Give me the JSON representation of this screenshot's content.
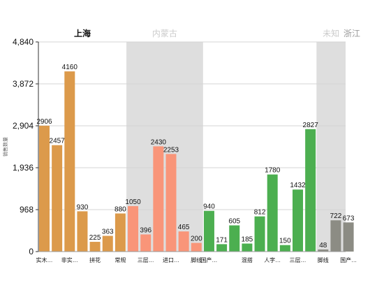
{
  "chart_data": {
    "type": "bar",
    "ylabel": "销售数量",
    "ylim": [
      0,
      4840
    ],
    "yticks": [
      0,
      968,
      1936,
      2904,
      3872,
      4840
    ],
    "ytick_labels": [
      "0",
      "968",
      "1,936",
      "2,904",
      "3,872",
      "4,840"
    ],
    "grid": true,
    "groups": [
      {
        "name": "上海",
        "color": "#DC9A4B",
        "highlighted": true,
        "shaded": false,
        "values": [
          2906,
          2457,
          4160,
          930,
          225,
          363,
          880
        ],
        "tick_labels": [
          "实木…",
          "",
          "非实…",
          "",
          "拼花",
          "",
          "常规"
        ]
      },
      {
        "name": "内蒙古",
        "color": "#F99579",
        "highlighted": false,
        "shaded": true,
        "values": [
          1050,
          396,
          2430,
          2253,
          465,
          200
        ],
        "tick_labels": [
          "",
          "三层…",
          "",
          "进口…",
          "",
          "脚线"
        ]
      },
      {
        "name": "",
        "color": "#4CAF50",
        "highlighted": false,
        "shaded": false,
        "values": [
          940,
          171,
          605,
          185,
          812,
          1780,
          150,
          1432,
          2827
        ],
        "tick_labels": [
          "国产…",
          "",
          "",
          "混搭",
          "",
          "人字…",
          "",
          "三层…",
          ""
        ]
      },
      {
        "name": "未知",
        "color": "#8C8C84",
        "highlighted": false,
        "shaded": true,
        "values": [
          48,
          722,
          673
        ],
        "tick_labels": [
          "脚线",
          "",
          "国产…"
        ]
      }
    ],
    "extra_legend": "浙江"
  },
  "colors": {
    "grid": "#d4d4d4",
    "shade": "#dedede",
    "axis": "#333333",
    "muted_label": "#cccccc"
  }
}
